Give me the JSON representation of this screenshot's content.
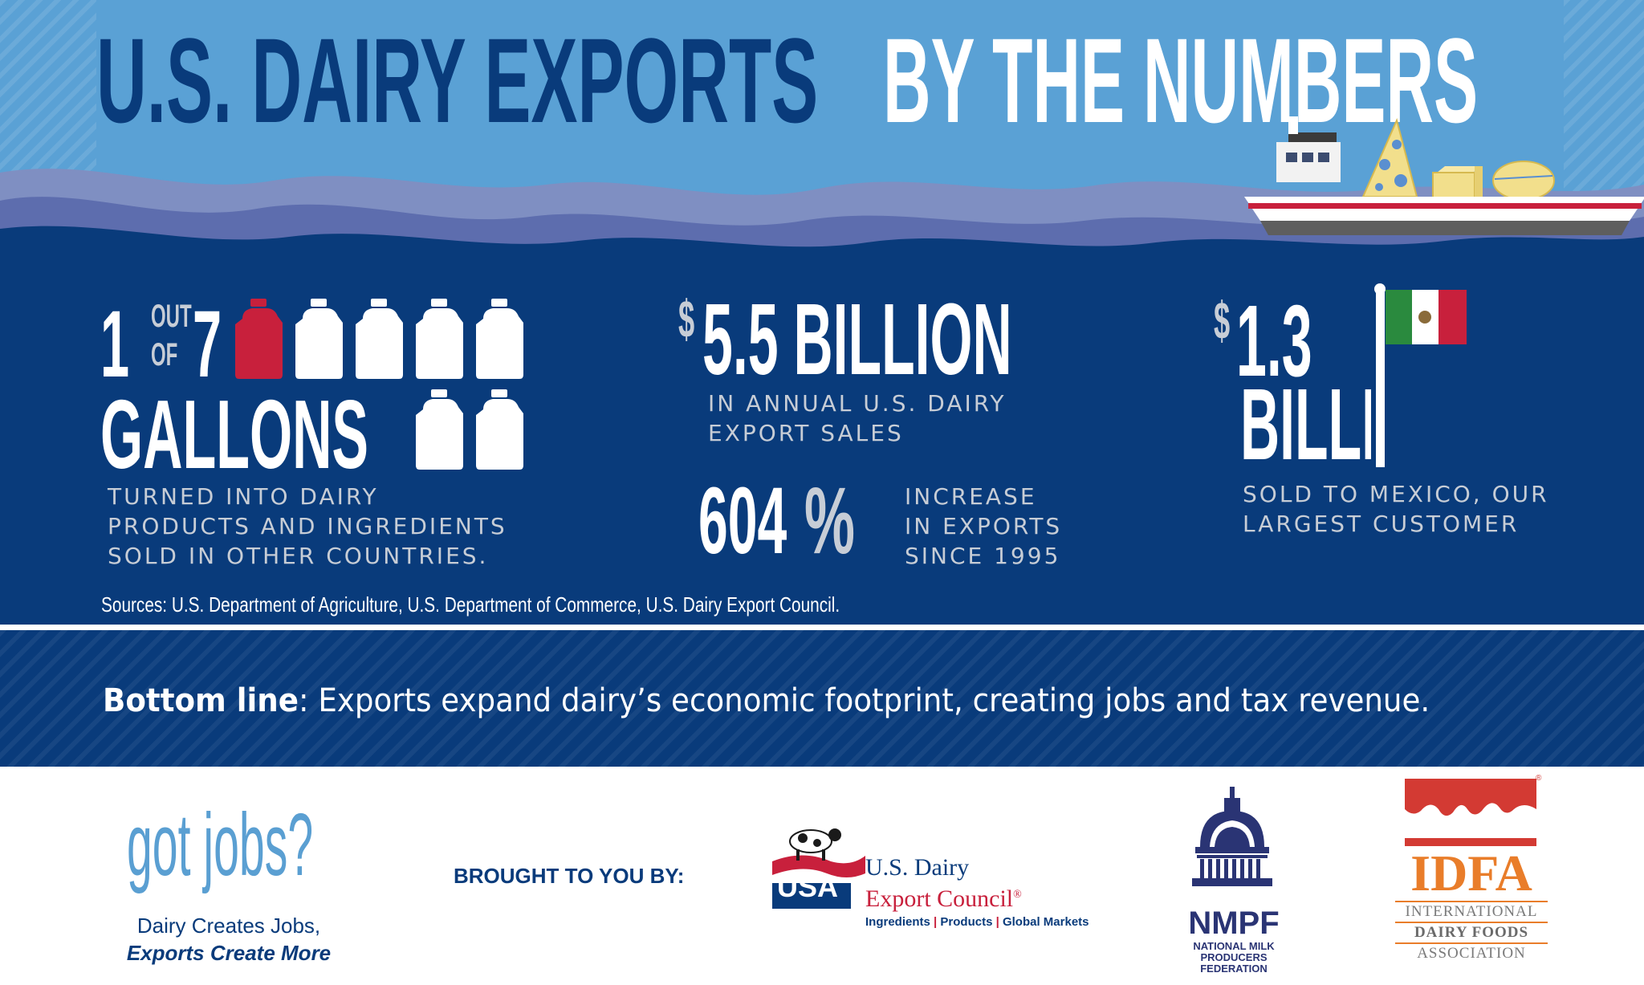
{
  "header": {
    "title_part1": "U.S. DAIRY EXPORTS",
    "title_part2": "BY THE NUMBERS"
  },
  "stat_gallons": {
    "one": "1",
    "out": "OUT",
    "of": "OF",
    "seven": "7",
    "gallons": "GALLONS",
    "description_lines": [
      "TURNED INTO DAIRY",
      "PRODUCTS AND INGREDIENTS",
      "SOLD IN OTHER COUNTRIES."
    ],
    "highlight_count": 1,
    "total_count": 7,
    "highlight_color": "#c8203c"
  },
  "stat_sales": {
    "dollar": "$",
    "value": "5.5 BILLION",
    "description_lines": [
      "IN ANNUAL U.S. DAIRY",
      "EXPORT SALES"
    ]
  },
  "stat_increase": {
    "number": "604",
    "percent": "%",
    "description_lines": [
      "INCREASE",
      "IN EXPORTS",
      "SINCE 1995"
    ]
  },
  "stat_mexico": {
    "dollar": "$",
    "value_line1": "1.3",
    "value_line2": "BILLION",
    "description_lines": [
      "SOLD TO MEXICO, OUR",
      "LARGEST CUSTOMER"
    ],
    "flag_icon": "mexico-flag-icon"
  },
  "sources": "Sources: U.S. Department of Agriculture, U.S. Department of Commerce, U.S. Dairy Export Council.",
  "bottom_line": {
    "bold": "Bottom line",
    "rest": ": Exports expand dairy’s economic footprint, creating jobs and tax revenue."
  },
  "footer": {
    "got_jobs": "got jobs?",
    "tagline_line1": "Dairy Creates Jobs,",
    "tagline_line2": "Exports Create More",
    "brought_by": "BROUGHT TO YOU BY:",
    "usdec": {
      "badge": "USA",
      "name_line1": "U.S. Dairy",
      "name_line2": "Export Council",
      "reg": "®",
      "sub1": "Ingredients",
      "sep": "|",
      "sub2": "Products",
      "sub3": "Global Markets"
    },
    "nmpf": {
      "acronym": "NMPF",
      "line1": "NATIONAL MILK",
      "line2": "PRODUCERS FEDERATION"
    },
    "idfa": {
      "acronym": "IDFA",
      "line1": "INTERNATIONAL",
      "line2": "DAIRY FOODS",
      "line3": "ASSOCIATION",
      "reg": "®"
    }
  },
  "colors": {
    "sky": "#5aa1d5",
    "navy": "#093b7b",
    "title_dark": "#093b7b",
    "accent_red": "#c8203c",
    "label_grey": "#c7cdd6",
    "got_jobs_blue": "#5a9fd2",
    "idfa_orange": "#e97d2a",
    "idfa_red": "#d33a33",
    "nmpf_navy": "#2a3474"
  }
}
